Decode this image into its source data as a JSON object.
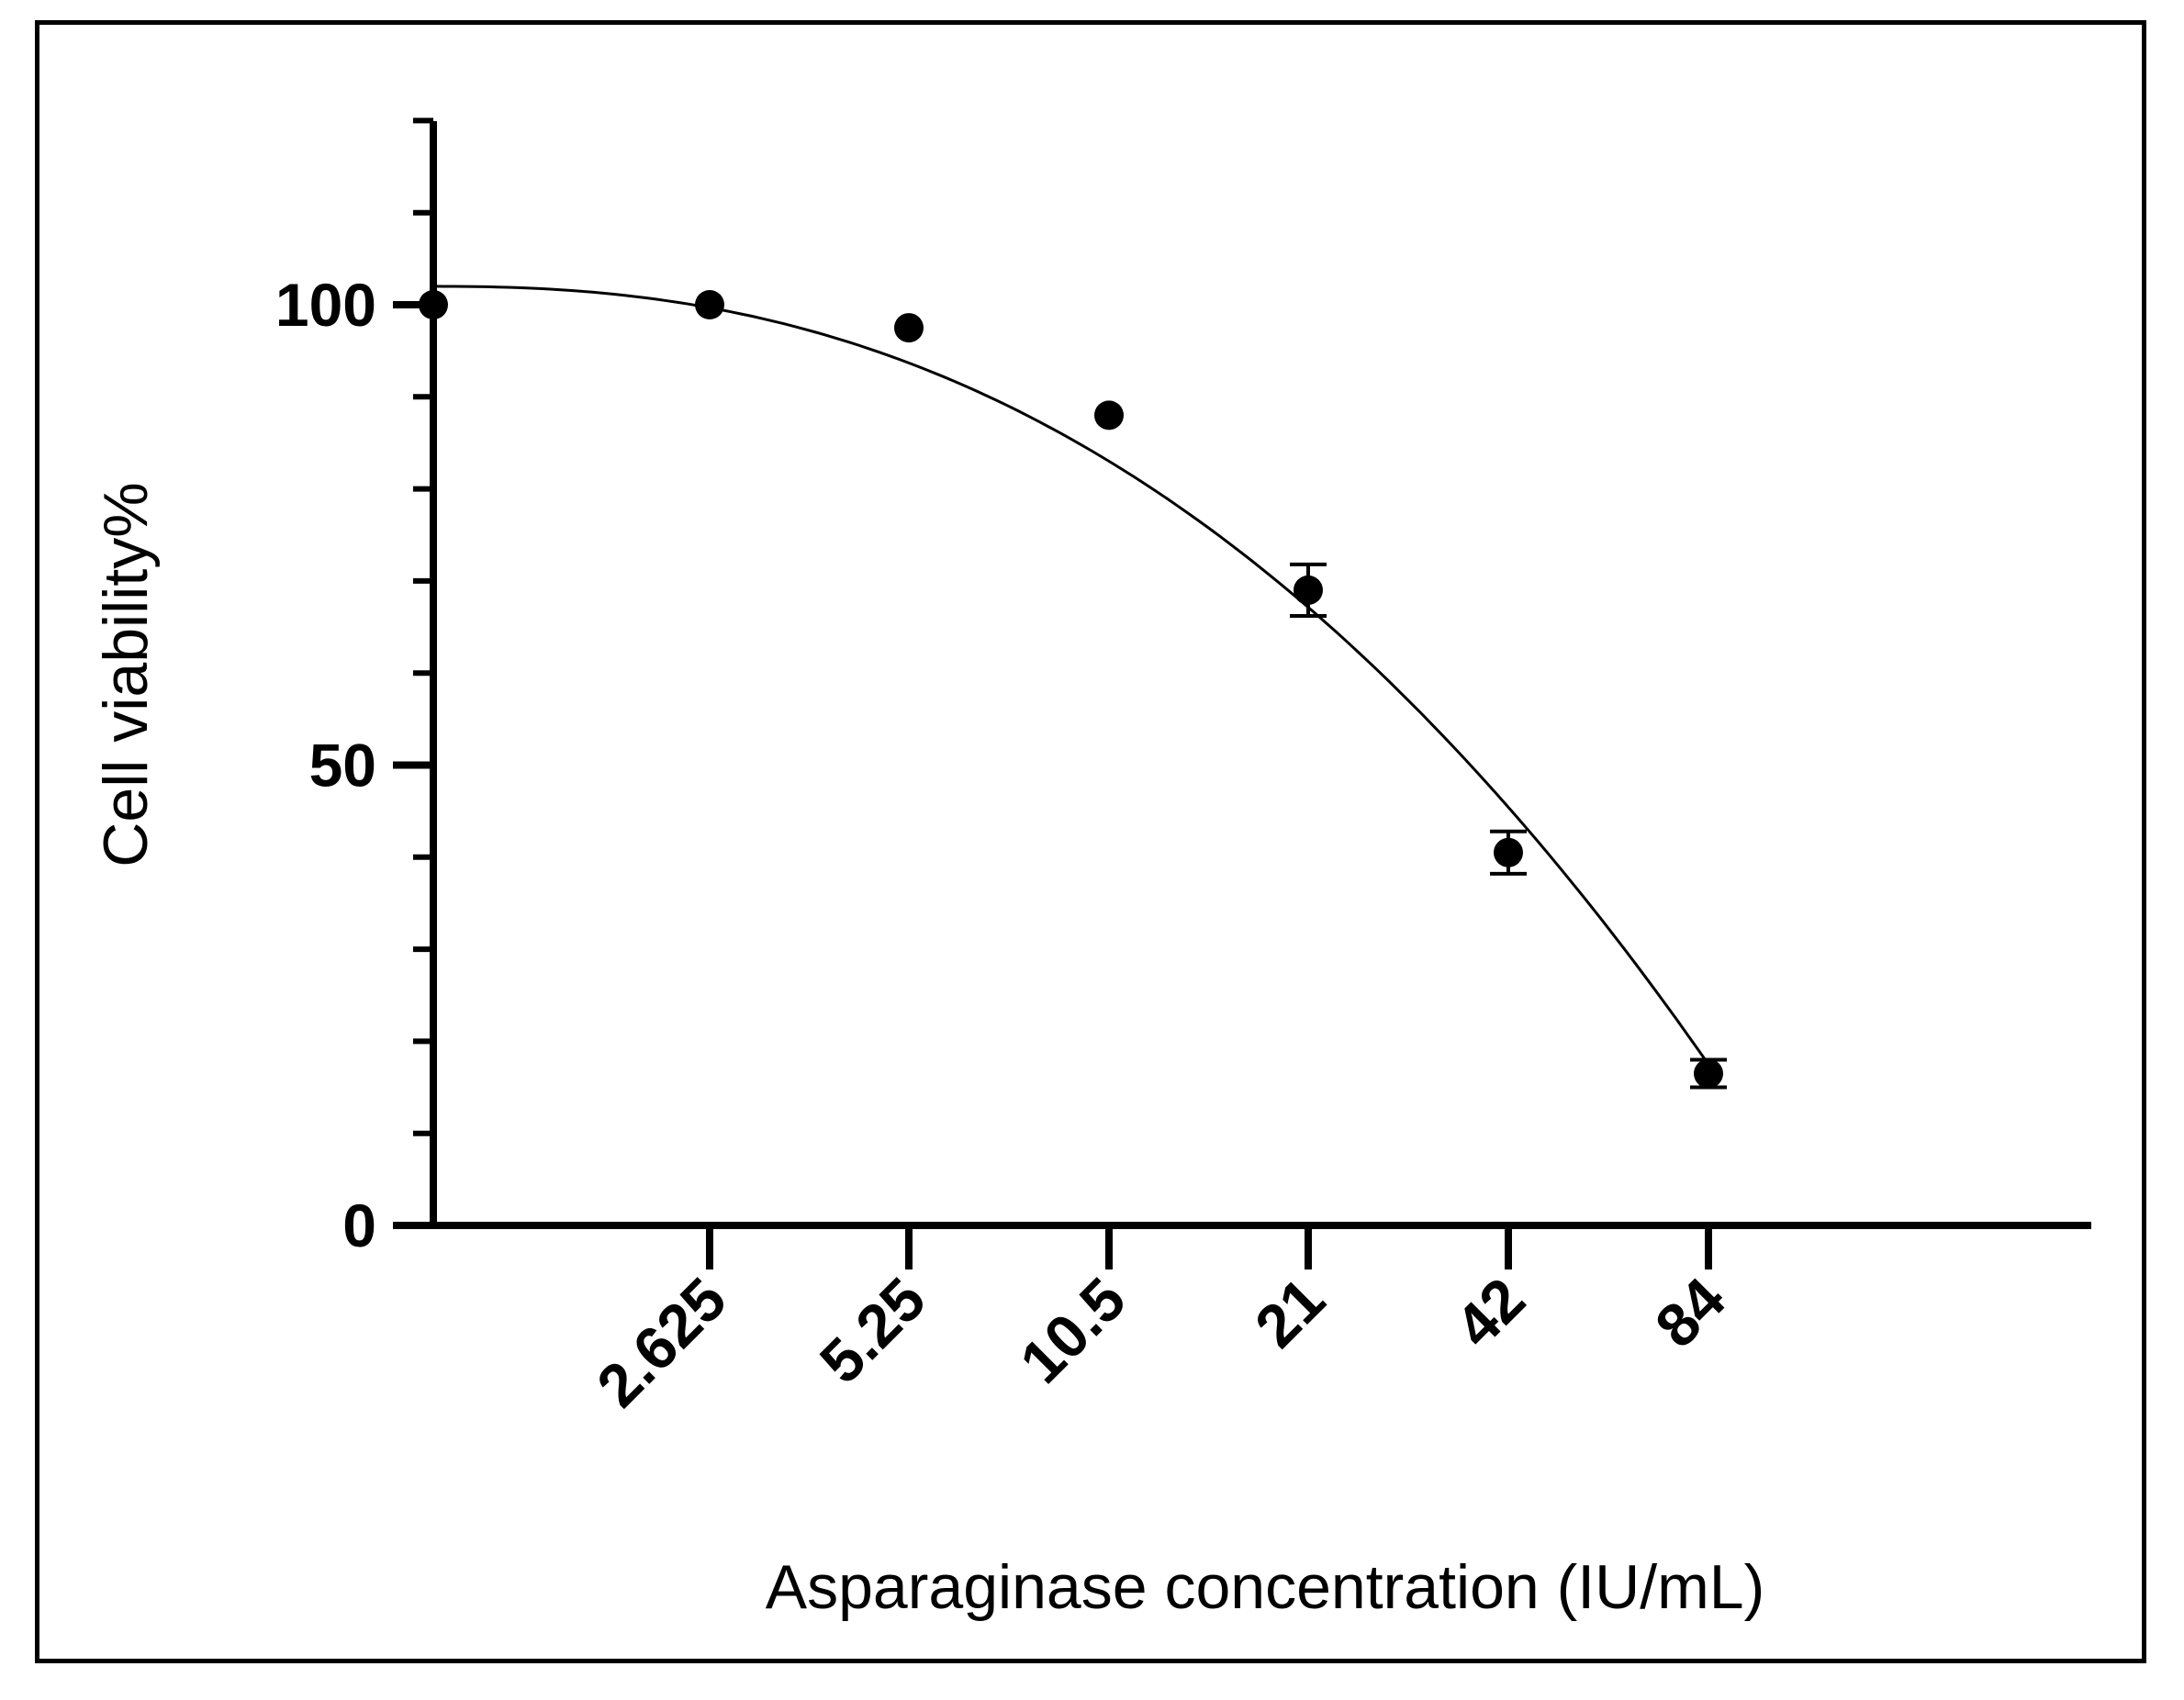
{
  "chart_data": {
    "type": "scatter",
    "title": "",
    "xlabel": "Asparaginase concentration (IU/mL)",
    "ylabel": "Cell viability%",
    "x_scale": "log2",
    "ylim": [
      0,
      120
    ],
    "y_ticks": [
      0,
      50,
      100
    ],
    "x_categories": [
      "0",
      "2.625",
      "5.25",
      "10.5",
      "21",
      "42",
      "84"
    ],
    "x_tick_labels": [
      "2.625",
      "5.25",
      "10.5",
      "21",
      "42",
      "84"
    ],
    "points": [
      {
        "x": "0",
        "y": 100,
        "err": 0
      },
      {
        "x": "2.625",
        "y": 100,
        "err": 0
      },
      {
        "x": "5.25",
        "y": 97.5,
        "err": 0
      },
      {
        "x": "10.5",
        "y": 88,
        "err": 0
      },
      {
        "x": "21",
        "y": 69,
        "err": 2.8
      },
      {
        "x": "42",
        "y": 40.5,
        "err": 2.3
      },
      {
        "x": "84",
        "y": 16.5,
        "err": 1.5
      }
    ],
    "fit_curve": {
      "type": "dose-response",
      "top": 102,
      "shape": "decreasing"
    },
    "colors": {
      "points": "#000000",
      "axes": "#000000",
      "curve": "#000000"
    },
    "grid": false,
    "legend": "none"
  }
}
